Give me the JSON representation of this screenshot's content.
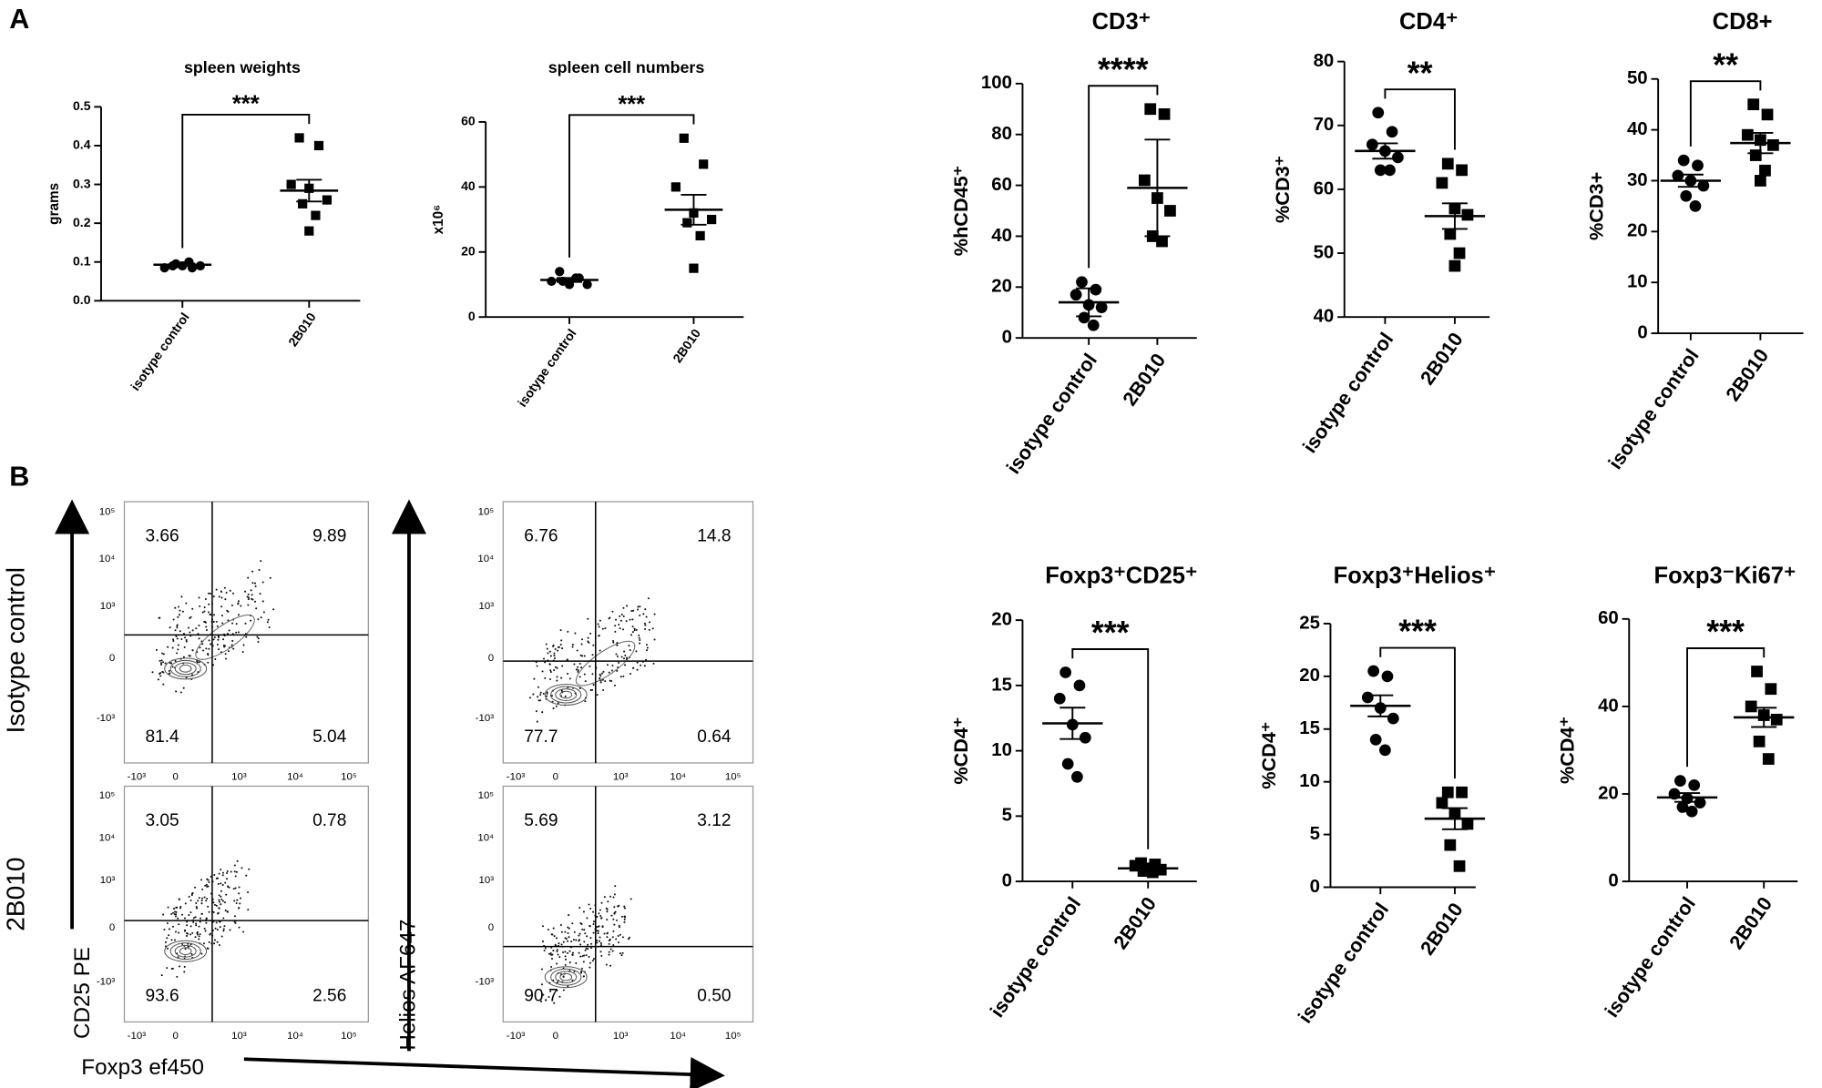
{
  "panel_labels": [
    "A",
    "B"
  ],
  "chart_data": [
    {
      "type": "dot",
      "title": "spleen weights",
      "ylabel": "grams",
      "categories": [
        "isotype control",
        "2B010"
      ],
      "points": [
        [
          0.09,
          0.085,
          0.085,
          0.09,
          0.09,
          0.095,
          0.1
        ],
        [
          0.42,
          0.4,
          0.3,
          0.29,
          0.26,
          0.25,
          0.22,
          0.18
        ]
      ],
      "means": [
        0.093,
        0.284
      ],
      "errors": [
        0.003,
        0.028
      ],
      "significance": "***",
      "ylim": [
        0,
        0.5
      ],
      "yticks": [
        {
          "value": 0,
          "label": "0.0"
        },
        0.1,
        0.2,
        0.3,
        0.4,
        0.5
      ]
    },
    {
      "type": "dot",
      "title": "spleen cell numbers",
      "ylabel": "x10⁶",
      "categories": [
        "isotype control",
        "2B010"
      ],
      "points": [
        [
          14,
          12,
          11,
          10,
          10,
          11,
          12
        ],
        [
          55,
          47,
          40,
          32,
          30,
          29,
          25,
          15
        ]
      ],
      "means": [
        11.4,
        33
      ],
      "errors": [
        0.6,
        4.6
      ],
      "significance": "***",
      "ylim": [
        0,
        60
      ],
      "yticks": [
        0,
        20,
        40,
        60
      ]
    },
    {
      "type": "dot",
      "title": "CD3⁺",
      "ylabel": "%hCD45⁺",
      "categories": [
        "isotype control",
        "2B010"
      ],
      "points": [
        [
          22,
          19,
          17,
          13,
          12,
          8,
          5
        ],
        [
          90,
          88,
          62,
          55,
          50,
          40,
          38
        ]
      ],
      "means": [
        14,
        59
      ],
      "errors": [
        5.5,
        19
      ],
      "significance": "****",
      "ylim": [
        0,
        100
      ],
      "yticks": [
        0,
        20,
        40,
        60,
        80,
        100
      ]
    },
    {
      "type": "dot",
      "title": "CD4⁺",
      "ylabel": "%CD3⁺",
      "categories": [
        "isotype control",
        "2B010"
      ],
      "points": [
        [
          72,
          69,
          67,
          66,
          65,
          63,
          63
        ],
        [
          64,
          63,
          61,
          57,
          56,
          53,
          50,
          48
        ]
      ],
      "means": [
        66,
        55.8
      ],
      "errors": [
        1.2,
        2
      ],
      "significance": "**",
      "ylim": [
        40,
        80
      ],
      "yticks": [
        40,
        50,
        60,
        70,
        80
      ]
    },
    {
      "type": "dot",
      "title": "CD8+",
      "ylabel": "%CD3+",
      "categories": [
        "isotype control",
        "2B010"
      ],
      "points": [
        [
          34,
          33,
          31,
          30,
          29,
          27,
          25
        ],
        [
          45,
          43,
          39,
          38,
          37,
          35,
          32,
          30
        ]
      ],
      "means": [
        30,
        37.4
      ],
      "errors": [
        1.2,
        2
      ],
      "significance": "**",
      "ylim": [
        0,
        50
      ],
      "yticks": [
        0,
        10,
        20,
        30,
        40,
        50
      ]
    },
    {
      "type": "dot",
      "title": "Foxp3⁺CD25⁺",
      "ylabel": "%CD4⁺",
      "categories": [
        "isotype control",
        "2B010"
      ],
      "points": [
        [
          16,
          15,
          14,
          12,
          11,
          9,
          8
        ],
        [
          1.4,
          1.3,
          1.2,
          1.0,
          0.9,
          0.8,
          0.7
        ]
      ],
      "means": [
        12.1,
        1.0
      ],
      "errors": [
        1.2,
        0.1
      ],
      "significance": "***",
      "ylim": [
        0,
        20
      ],
      "yticks": [
        0,
        5,
        10,
        15,
        20
      ]
    },
    {
      "type": "dot",
      "title": "Foxp3⁺Helios⁺",
      "ylabel": "%CD4⁺",
      "categories": [
        "isotype control",
        "2B010"
      ],
      "points": [
        [
          20.5,
          20,
          18,
          17,
          16,
          14,
          13
        ],
        [
          9,
          9,
          8,
          7,
          6,
          4,
          2
        ]
      ],
      "means": [
        17.2,
        6.5
      ],
      "errors": [
        1,
        1
      ],
      "significance": "***",
      "ylim": [
        0,
        25
      ],
      "yticks": [
        0,
        5,
        10,
        15,
        20,
        25
      ]
    },
    {
      "type": "dot",
      "title": "Foxp3⁻Ki67⁺",
      "ylabel": "%CD4⁺",
      "categories": [
        "isotype control",
        "2B010"
      ],
      "points": [
        [
          23,
          22,
          20,
          19,
          18,
          17,
          16
        ],
        [
          48,
          44,
          40,
          38,
          37,
          32,
          28
        ]
      ],
      "means": [
        19.2,
        37.5
      ],
      "errors": [
        1,
        2.2
      ],
      "significance": "***",
      "ylim": [
        0,
        60
      ],
      "yticks": [
        0,
        20,
        40,
        60
      ]
    }
  ],
  "flow": {
    "row_labels": [
      "Isotype control",
      "2B010"
    ],
    "y_axis_labels": [
      "CD25 PE",
      "Helios AF647"
    ],
    "x_axis_label": "Foxp3 ef450",
    "y_ticks": [
      "10⁵",
      "10⁴",
      "10³",
      "0",
      "-10³"
    ],
    "x_ticks": [
      "-10³",
      "0",
      "10³",
      "10⁴",
      "10⁵"
    ],
    "panels": [
      {
        "quadrants": [
          "3.66",
          "9.89",
          "81.4",
          "5.04"
        ]
      },
      {
        "quadrants": [
          "6.76",
          "14.8",
          "77.7",
          "0.64"
        ]
      },
      {
        "quadrants": [
          "3.05",
          "0.78",
          "93.6",
          "2.56"
        ]
      },
      {
        "quadrants": [
          "5.69",
          "3.12",
          "90.7",
          "0.50"
        ]
      }
    ]
  }
}
